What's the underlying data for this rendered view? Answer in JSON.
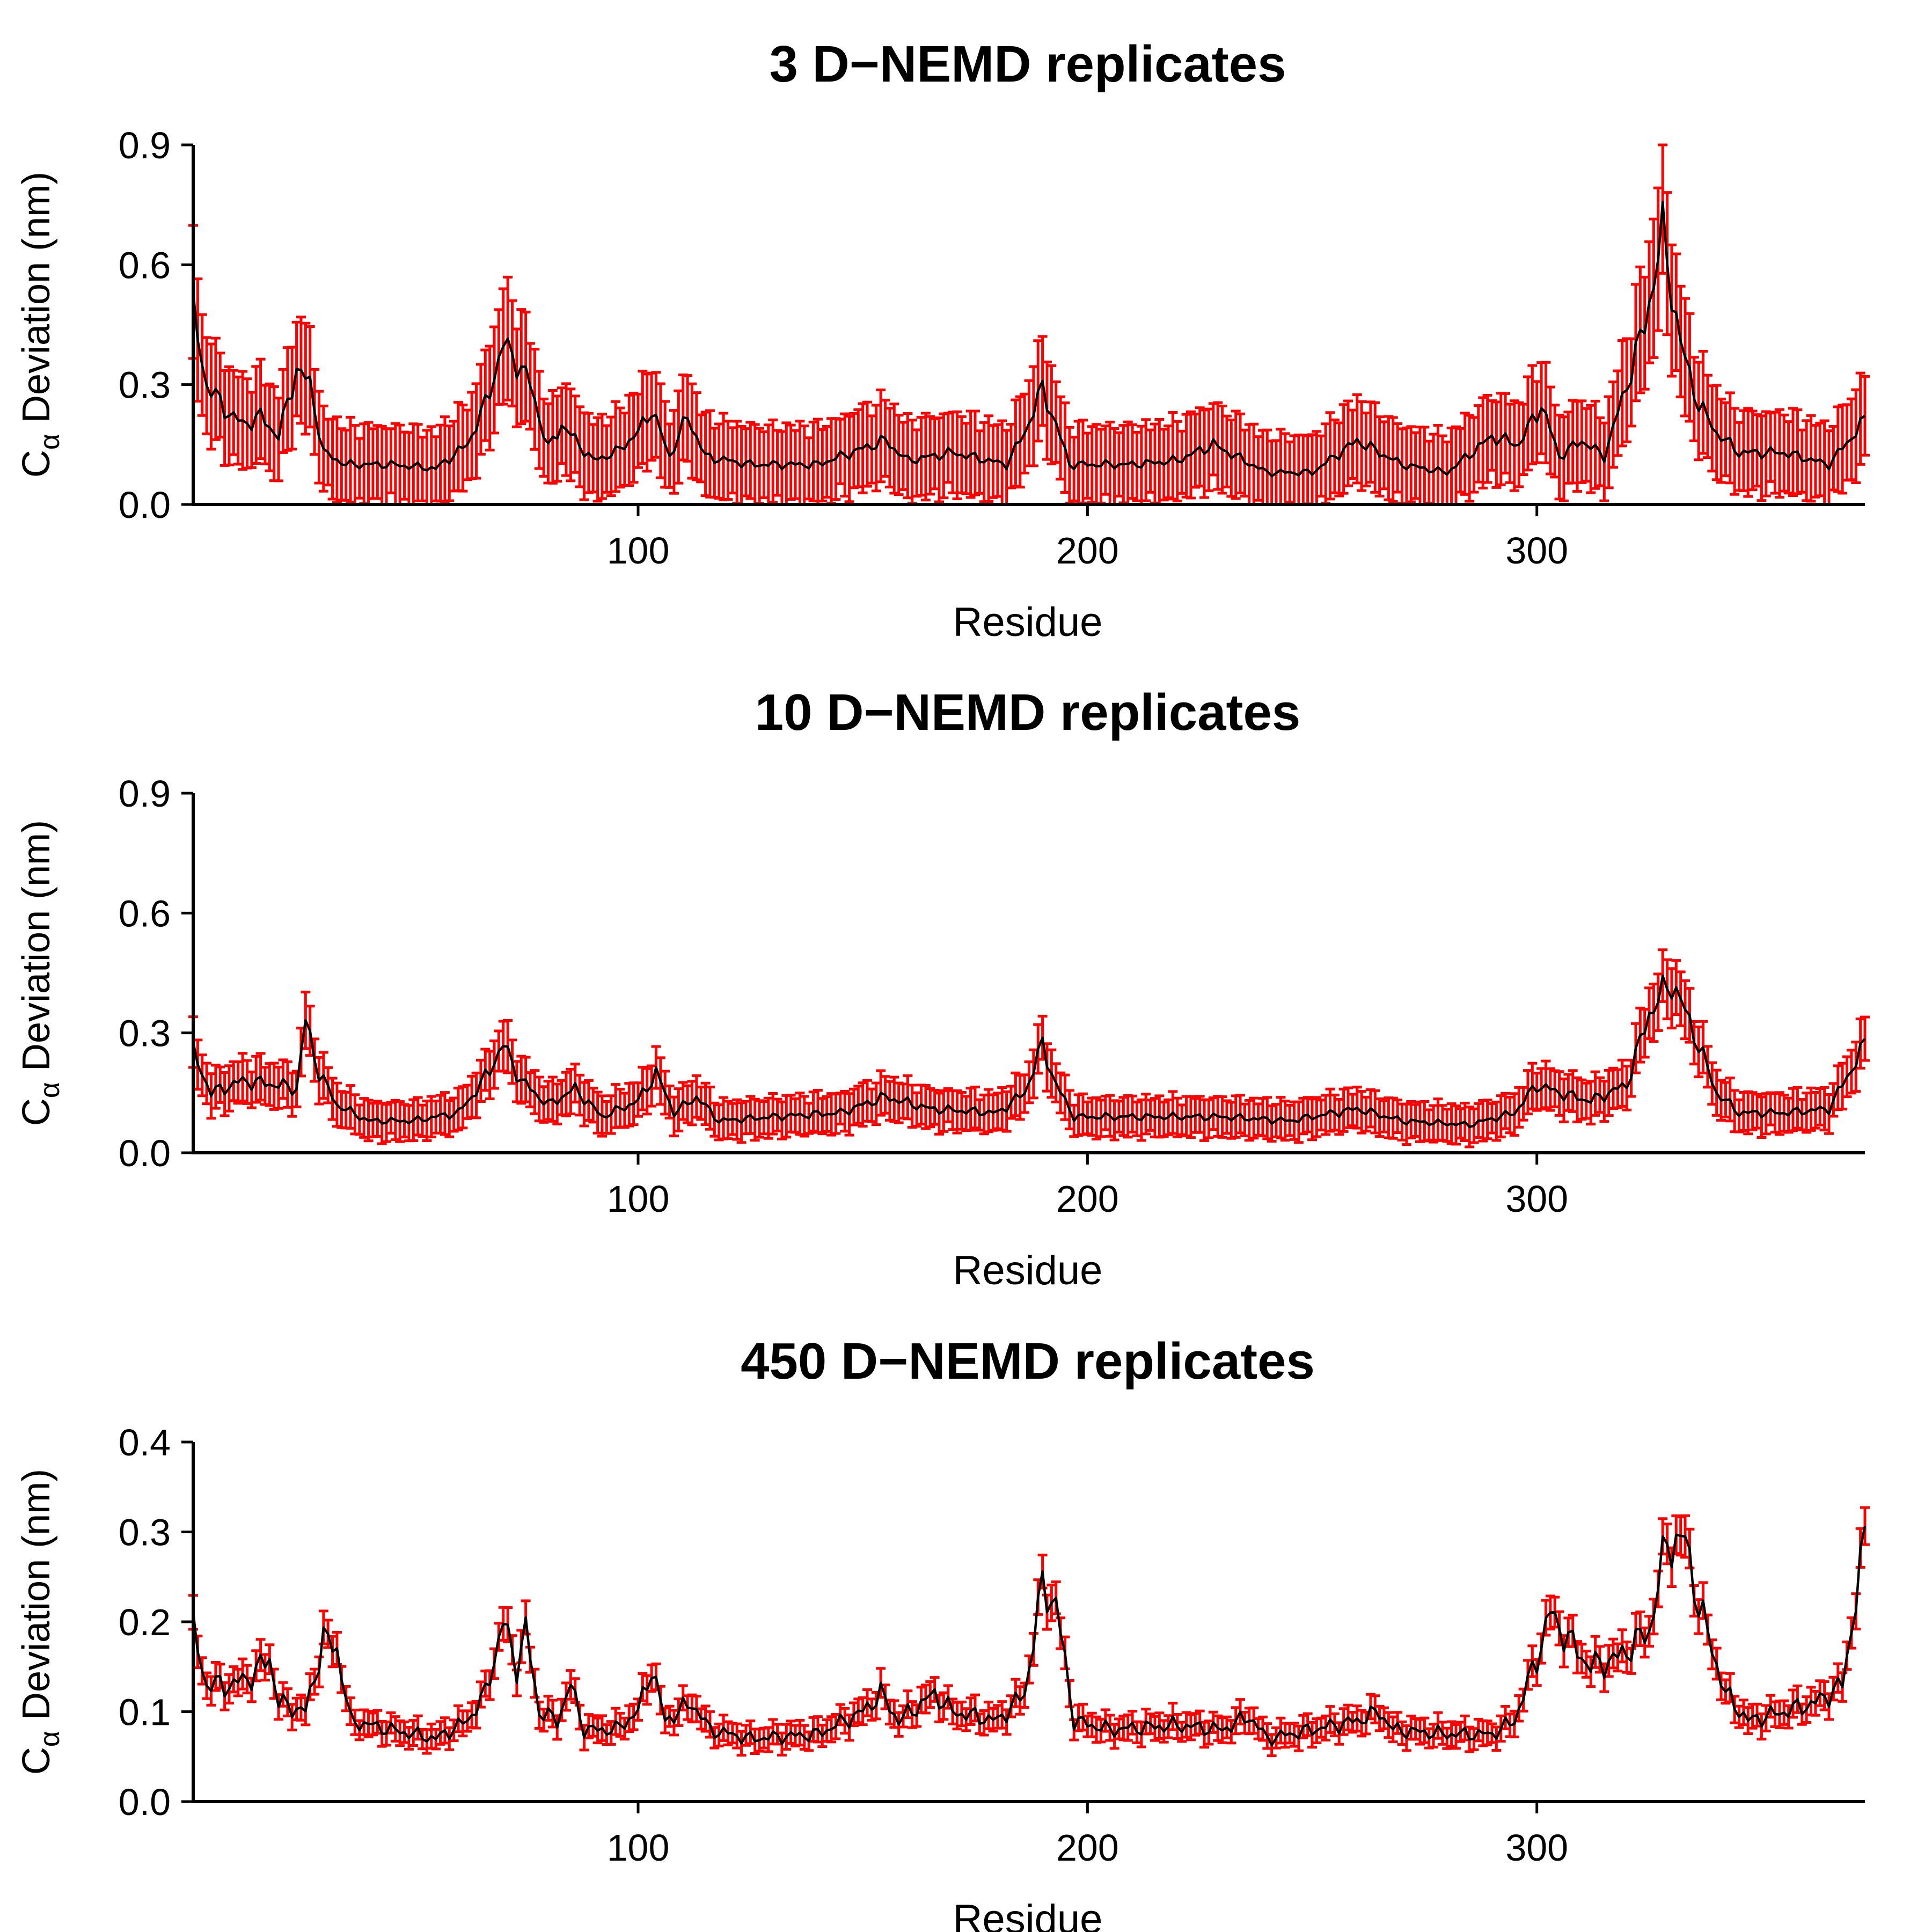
{
  "chart_data": [
    {
      "type": "line",
      "title": "3 D−NEMD replicates",
      "xlabel": "Residue",
      "ylabel": "Cα Deviation (nm)",
      "ylabel_main": "C",
      "ylabel_sub": "α",
      "ylabel_rest": " Deviation (nm)",
      "xlim": [
        1,
        373
      ],
      "ylim": [
        0,
        0.9
      ],
      "xticks": [
        100,
        200,
        300
      ],
      "yticks": [
        "0.0",
        "0.3",
        "0.6",
        "0.9"
      ],
      "ytick_values": [
        0,
        0.3,
        0.6,
        0.9
      ],
      "line_color": "#000000",
      "errorbar_color": "#ff0000",
      "mean_anchors": [
        [
          1,
          0.48
        ],
        [
          4,
          0.3
        ],
        [
          8,
          0.24
        ],
        [
          12,
          0.2
        ],
        [
          16,
          0.22
        ],
        [
          20,
          0.17
        ],
        [
          24,
          0.34
        ],
        [
          27,
          0.3
        ],
        [
          30,
          0.13
        ],
        [
          35,
          0.1
        ],
        [
          45,
          0.1
        ],
        [
          55,
          0.09
        ],
        [
          62,
          0.15
        ],
        [
          66,
          0.25
        ],
        [
          70,
          0.4
        ],
        [
          73,
          0.36
        ],
        [
          76,
          0.3
        ],
        [
          80,
          0.14
        ],
        [
          83,
          0.2
        ],
        [
          90,
          0.11
        ],
        [
          95,
          0.13
        ],
        [
          100,
          0.18
        ],
        [
          103,
          0.24
        ],
        [
          107,
          0.12
        ],
        [
          111,
          0.22
        ],
        [
          115,
          0.12
        ],
        [
          125,
          0.1
        ],
        [
          140,
          0.1
        ],
        [
          150,
          0.14
        ],
        [
          155,
          0.16
        ],
        [
          160,
          0.11
        ],
        [
          170,
          0.13
        ],
        [
          182,
          0.1
        ],
        [
          186,
          0.18
        ],
        [
          190,
          0.29
        ],
        [
          193,
          0.2
        ],
        [
          196,
          0.1
        ],
        [
          210,
          0.1
        ],
        [
          220,
          0.11
        ],
        [
          228,
          0.15
        ],
        [
          240,
          0.08
        ],
        [
          250,
          0.08
        ],
        [
          260,
          0.16
        ],
        [
          270,
          0.1
        ],
        [
          280,
          0.08
        ],
        [
          290,
          0.17
        ],
        [
          296,
          0.15
        ],
        [
          301,
          0.25
        ],
        [
          305,
          0.12
        ],
        [
          310,
          0.16
        ],
        [
          315,
          0.12
        ],
        [
          320,
          0.3
        ],
        [
          324,
          0.45
        ],
        [
          328,
          0.68
        ],
        [
          332,
          0.4
        ],
        [
          336,
          0.25
        ],
        [
          340,
          0.18
        ],
        [
          345,
          0.13
        ],
        [
          355,
          0.13
        ],
        [
          365,
          0.1
        ],
        [
          373,
          0.21
        ]
      ],
      "errorbar_halfwidth": 0.1
    },
    {
      "type": "line",
      "title": "10 D−NEMD replicates",
      "xlabel": "Residue",
      "ylabel": "Cα Deviation (nm)",
      "ylabel_main": "C",
      "ylabel_sub": "α",
      "ylabel_rest": " Deviation (nm)",
      "xlim": [
        1,
        373
      ],
      "ylim": [
        0,
        0.9
      ],
      "xticks": [
        100,
        200,
        300
      ],
      "yticks": [
        "0.0",
        "0.3",
        "0.6",
        "0.9"
      ],
      "ytick_values": [
        0,
        0.3,
        0.6,
        0.9
      ],
      "line_color": "#000000",
      "errorbar_color": "#ff0000",
      "mean_anchors": [
        [
          1,
          0.25
        ],
        [
          5,
          0.15
        ],
        [
          12,
          0.18
        ],
        [
          20,
          0.17
        ],
        [
          24,
          0.16
        ],
        [
          26,
          0.33
        ],
        [
          29,
          0.2
        ],
        [
          33,
          0.12
        ],
        [
          40,
          0.08
        ],
        [
          50,
          0.08
        ],
        [
          60,
          0.1
        ],
        [
          65,
          0.17
        ],
        [
          70,
          0.27
        ],
        [
          74,
          0.18
        ],
        [
          80,
          0.12
        ],
        [
          86,
          0.16
        ],
        [
          92,
          0.09
        ],
        [
          100,
          0.13
        ],
        [
          104,
          0.2
        ],
        [
          108,
          0.1
        ],
        [
          113,
          0.14
        ],
        [
          118,
          0.08
        ],
        [
          130,
          0.09
        ],
        [
          145,
          0.1
        ],
        [
          155,
          0.14
        ],
        [
          165,
          0.11
        ],
        [
          180,
          0.1
        ],
        [
          186,
          0.15
        ],
        [
          190,
          0.27
        ],
        [
          193,
          0.17
        ],
        [
          197,
          0.09
        ],
        [
          215,
          0.09
        ],
        [
          230,
          0.09
        ],
        [
          245,
          0.08
        ],
        [
          260,
          0.11
        ],
        [
          270,
          0.08
        ],
        [
          285,
          0.07
        ],
        [
          295,
          0.1
        ],
        [
          300,
          0.17
        ],
        [
          305,
          0.15
        ],
        [
          312,
          0.13
        ],
        [
          320,
          0.17
        ],
        [
          325,
          0.35
        ],
        [
          330,
          0.43
        ],
        [
          335,
          0.3
        ],
        [
          340,
          0.15
        ],
        [
          345,
          0.1
        ],
        [
          355,
          0.1
        ],
        [
          365,
          0.11
        ],
        [
          373,
          0.27
        ]
      ],
      "errorbar_halfwidth": 0.05
    },
    {
      "type": "line",
      "title": "450 D−NEMD replicates",
      "xlabel": "Residue",
      "ylabel": "Cα Deviation (nm)",
      "ylabel_main": "C",
      "ylabel_sub": "α",
      "ylabel_rest": " Deviation (nm)",
      "xlim": [
        1,
        373
      ],
      "ylim": [
        0,
        0.4
      ],
      "xticks": [
        100,
        200,
        300
      ],
      "yticks": [
        "0.0",
        "0.1",
        "0.2",
        "0.3",
        "0.4"
      ],
      "ytick_values": [
        0,
        0.1,
        0.2,
        0.3,
        0.4
      ],
      "line_color": "#000000",
      "errorbar_color": "#ff0000",
      "mean_anchors": [
        [
          1,
          0.19
        ],
        [
          4,
          0.13
        ],
        [
          10,
          0.13
        ],
        [
          14,
          0.14
        ],
        [
          18,
          0.16
        ],
        [
          20,
          0.11
        ],
        [
          26,
          0.1
        ],
        [
          30,
          0.18
        ],
        [
          33,
          0.17
        ],
        [
          36,
          0.09
        ],
        [
          45,
          0.08
        ],
        [
          55,
          0.07
        ],
        [
          62,
          0.09
        ],
        [
          66,
          0.12
        ],
        [
          70,
          0.2
        ],
        [
          73,
          0.15
        ],
        [
          75,
          0.19
        ],
        [
          78,
          0.1
        ],
        [
          82,
          0.09
        ],
        [
          85,
          0.13
        ],
        [
          88,
          0.08
        ],
        [
          95,
          0.08
        ],
        [
          100,
          0.1
        ],
        [
          103,
          0.15
        ],
        [
          106,
          0.09
        ],
        [
          112,
          0.11
        ],
        [
          116,
          0.08
        ],
        [
          125,
          0.07
        ],
        [
          140,
          0.075
        ],
        [
          150,
          0.1
        ],
        [
          154,
          0.12
        ],
        [
          158,
          0.09
        ],
        [
          166,
          0.12
        ],
        [
          170,
          0.1
        ],
        [
          180,
          0.09
        ],
        [
          186,
          0.12
        ],
        [
          190,
          0.24
        ],
        [
          193,
          0.22
        ],
        [
          197,
          0.09
        ],
        [
          205,
          0.08
        ],
        [
          220,
          0.085
        ],
        [
          230,
          0.08
        ],
        [
          236,
          0.095
        ],
        [
          240,
          0.07
        ],
        [
          250,
          0.08
        ],
        [
          260,
          0.09
        ],
        [
          265,
          0.1
        ],
        [
          268,
          0.08
        ],
        [
          280,
          0.075
        ],
        [
          290,
          0.075
        ],
        [
          295,
          0.09
        ],
        [
          300,
          0.16
        ],
        [
          303,
          0.21
        ],
        [
          307,
          0.18
        ],
        [
          312,
          0.15
        ],
        [
          318,
          0.16
        ],
        [
          325,
          0.19
        ],
        [
          329,
          0.29
        ],
        [
          333,
          0.29
        ],
        [
          336,
          0.22
        ],
        [
          342,
          0.12
        ],
        [
          347,
          0.09
        ],
        [
          355,
          0.1
        ],
        [
          362,
          0.11
        ],
        [
          368,
          0.13
        ],
        [
          373,
          0.29
        ]
      ],
      "errorbar_halfwidth": 0.012
    }
  ]
}
